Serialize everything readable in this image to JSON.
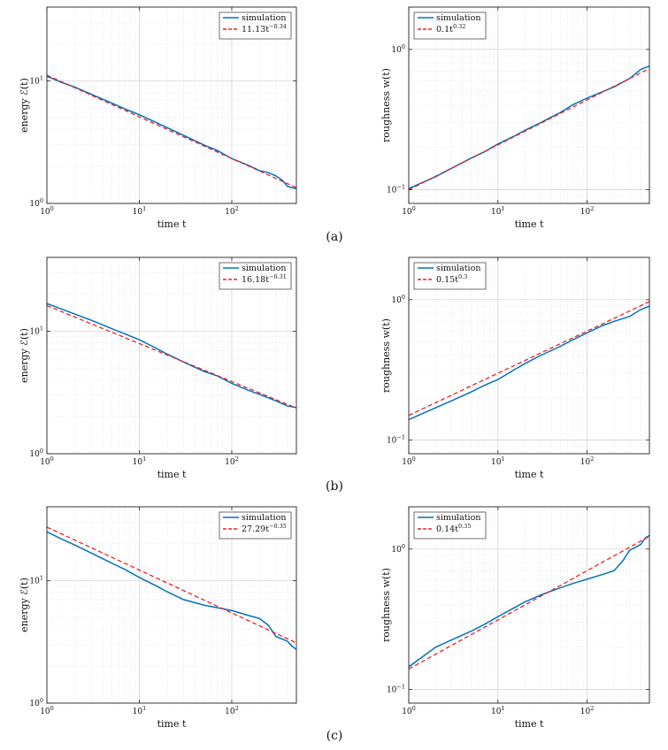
{
  "panel_labels": [
    "(a)",
    "(b)",
    "(c)"
  ],
  "chart_data": [
    {
      "id": "a-energy",
      "type": "line",
      "xscale": "log",
      "yscale": "log",
      "xlim": [
        1,
        500
      ],
      "ylim": [
        1,
        40
      ],
      "xlabel": "time t",
      "ylabel": "energy ℰ(t)",
      "xticks": [
        {
          "v": 1,
          "base": "10",
          "exp": "0"
        },
        {
          "v": 10,
          "base": "10",
          "exp": "1"
        },
        {
          "v": 100,
          "base": "10",
          "exp": "2"
        }
      ],
      "yticks": [
        {
          "v": 1,
          "base": "10",
          "exp": "0"
        },
        {
          "v": 10,
          "base": "10",
          "exp": "1"
        }
      ],
      "legend_position": "top-right",
      "grid": true,
      "series": [
        {
          "name": "simulation",
          "style": "solid",
          "color": "#0072BD",
          "points": [
            [
              1,
              10.9
            ],
            [
              1.5,
              9.6
            ],
            [
              2,
              8.9
            ],
            [
              3,
              7.8
            ],
            [
              5,
              6.6
            ],
            [
              7,
              5.9
            ],
            [
              10,
              5.3
            ],
            [
              15,
              4.6
            ],
            [
              20,
              4.15
            ],
            [
              30,
              3.6
            ],
            [
              50,
              3.0
            ],
            [
              70,
              2.7
            ],
            [
              100,
              2.32
            ],
            [
              150,
              2.05
            ],
            [
              200,
              1.85
            ],
            [
              250,
              1.78
            ],
            [
              300,
              1.68
            ],
            [
              350,
              1.55
            ],
            [
              400,
              1.38
            ],
            [
              450,
              1.34
            ],
            [
              500,
              1.32
            ]
          ]
        },
        {
          "name": "11.13t^{-0.34}",
          "style": "dashed",
          "color": "#E8222A",
          "fit": {
            "a": 11.13,
            "b": -0.34
          }
        }
      ],
      "legend": [
        {
          "text": "simulation"
        },
        {
          "coef": "11.13t",
          "exp": "−0.34"
        }
      ]
    },
    {
      "id": "a-roughness",
      "type": "line",
      "xscale": "log",
      "yscale": "log",
      "xlim": [
        1,
        500
      ],
      "ylim": [
        0.08,
        2
      ],
      "xlabel": "time t",
      "ylabel": "roughness w(t)",
      "xticks": [
        {
          "v": 1,
          "base": "10",
          "exp": "0"
        },
        {
          "v": 10,
          "base": "10",
          "exp": "1"
        },
        {
          "v": 100,
          "base": "10",
          "exp": "2"
        }
      ],
      "yticks": [
        {
          "v": 0.1,
          "base": "10",
          "exp": "−1"
        },
        {
          "v": 1,
          "base": "10",
          "exp": "0"
        }
      ],
      "legend_position": "top-left",
      "grid": true,
      "series": [
        {
          "name": "simulation",
          "style": "solid",
          "color": "#0072BD",
          "points": [
            [
              1,
              0.102
            ],
            [
              2,
              0.124
            ],
            [
              3,
              0.142
            ],
            [
              5,
              0.168
            ],
            [
              7,
              0.186
            ],
            [
              10,
              0.212
            ],
            [
              15,
              0.24
            ],
            [
              20,
              0.265
            ],
            [
              30,
              0.3
            ],
            [
              50,
              0.355
            ],
            [
              70,
              0.405
            ],
            [
              100,
              0.45
            ],
            [
              150,
              0.5
            ],
            [
              200,
              0.54
            ],
            [
              300,
              0.62
            ],
            [
              400,
              0.72
            ],
            [
              500,
              0.76
            ]
          ]
        },
        {
          "name": "0.1t^{0.32}",
          "style": "dashed",
          "color": "#E8222A",
          "fit": {
            "a": 0.1,
            "b": 0.32
          }
        }
      ],
      "legend": [
        {
          "text": "simulation"
        },
        {
          "coef": "0.1t",
          "exp": "0.32"
        }
      ]
    },
    {
      "id": "b-energy",
      "type": "line",
      "xscale": "log",
      "yscale": "log",
      "xlim": [
        1,
        500
      ],
      "ylim": [
        1,
        40
      ],
      "xlabel": "time t",
      "ylabel": "energy ℰ(t)",
      "xticks": [
        {
          "v": 1,
          "base": "10",
          "exp": "0"
        },
        {
          "v": 10,
          "base": "10",
          "exp": "1"
        },
        {
          "v": 100,
          "base": "10",
          "exp": "2"
        }
      ],
      "yticks": [
        {
          "v": 1,
          "base": "10",
          "exp": "0"
        },
        {
          "v": 10,
          "base": "10",
          "exp": "1"
        }
      ],
      "legend_position": "top-right",
      "grid": true,
      "series": [
        {
          "name": "simulation",
          "style": "solid",
          "color": "#0072BD",
          "points": [
            [
              1,
              16.8
            ],
            [
              1.5,
              15.0
            ],
            [
              2,
              13.8
            ],
            [
              3,
              12.3
            ],
            [
              5,
              10.5
            ],
            [
              7,
              9.5
            ],
            [
              10,
              8.5
            ],
            [
              15,
              7.3
            ],
            [
              20,
              6.5
            ],
            [
              30,
              5.6
            ],
            [
              50,
              4.7
            ],
            [
              70,
              4.3
            ],
            [
              100,
              3.75
            ],
            [
              150,
              3.3
            ],
            [
              200,
              3.05
            ],
            [
              300,
              2.7
            ],
            [
              400,
              2.45
            ],
            [
              500,
              2.38
            ]
          ]
        },
        {
          "name": "16.18t^{-0.31}",
          "style": "dashed",
          "color": "#E8222A",
          "fit": {
            "a": 16.18,
            "b": -0.31
          }
        }
      ],
      "legend": [
        {
          "text": "simulation"
        },
        {
          "coef": "16.18t",
          "exp": "−0.31"
        }
      ]
    },
    {
      "id": "b-roughness",
      "type": "line",
      "xscale": "log",
      "yscale": "log",
      "xlim": [
        1,
        500
      ],
      "ylim": [
        0.08,
        2
      ],
      "xlabel": "time t",
      "ylabel": "roughness w(t)",
      "xticks": [
        {
          "v": 1,
          "base": "10",
          "exp": "0"
        },
        {
          "v": 10,
          "base": "10",
          "exp": "1"
        },
        {
          "v": 100,
          "base": "10",
          "exp": "2"
        }
      ],
      "yticks": [
        {
          "v": 0.1,
          "base": "10",
          "exp": "−1"
        },
        {
          "v": 1,
          "base": "10",
          "exp": "0"
        }
      ],
      "legend_position": "top-left",
      "grid": true,
      "series": [
        {
          "name": "simulation",
          "style": "solid",
          "color": "#0072BD",
          "points": [
            [
              1,
              0.14
            ],
            [
              2,
              0.17
            ],
            [
              3,
              0.19
            ],
            [
              5,
              0.22
            ],
            [
              7,
              0.245
            ],
            [
              10,
              0.27
            ],
            [
              15,
              0.315
            ],
            [
              20,
              0.35
            ],
            [
              30,
              0.4
            ],
            [
              50,
              0.465
            ],
            [
              70,
              0.52
            ],
            [
              100,
              0.58
            ],
            [
              150,
              0.655
            ],
            [
              200,
              0.7
            ],
            [
              300,
              0.76
            ],
            [
              400,
              0.85
            ],
            [
              500,
              0.9
            ]
          ]
        },
        {
          "name": "0.15t^{0.3}",
          "style": "dashed",
          "color": "#E8222A",
          "fit": {
            "a": 0.15,
            "b": 0.3
          }
        }
      ],
      "legend": [
        {
          "text": "simulation"
        },
        {
          "coef": "0.15t",
          "exp": "0.3"
        }
      ]
    },
    {
      "id": "c-energy",
      "type": "line",
      "xscale": "log",
      "yscale": "log",
      "xlim": [
        1,
        500
      ],
      "ylim": [
        1,
        40
      ],
      "xlabel": "time t",
      "ylabel": "energy ℰ(t)",
      "xticks": [
        {
          "v": 1,
          "base": "10",
          "exp": "0"
        },
        {
          "v": 10,
          "base": "10",
          "exp": "1"
        },
        {
          "v": 100,
          "base": "10",
          "exp": "2"
        }
      ],
      "yticks": [
        {
          "v": 1,
          "base": "10",
          "exp": "0"
        },
        {
          "v": 10,
          "base": "10",
          "exp": "1"
        }
      ],
      "legend_position": "top-right",
      "grid": true,
      "series": [
        {
          "name": "simulation",
          "style": "solid",
          "color": "#0072BD",
          "points": [
            [
              1,
              25.0
            ],
            [
              1.5,
              21.5
            ],
            [
              2,
              19.5
            ],
            [
              3,
              16.8
            ],
            [
              5,
              13.9
            ],
            [
              7,
              12.3
            ],
            [
              10,
              10.6
            ],
            [
              15,
              9.1
            ],
            [
              20,
              8.1
            ],
            [
              30,
              7.0
            ],
            [
              50,
              6.3
            ],
            [
              70,
              6.0
            ],
            [
              100,
              5.7
            ],
            [
              150,
              5.2
            ],
            [
              200,
              4.9
            ],
            [
              250,
              4.3
            ],
            [
              300,
              3.5
            ],
            [
              400,
              3.2
            ],
            [
              450,
              2.9
            ],
            [
              500,
              2.75
            ]
          ]
        },
        {
          "name": "27.29t^{-0.35}",
          "style": "dashed",
          "color": "#E8222A",
          "fit": {
            "a": 27.29,
            "b": -0.35
          }
        }
      ],
      "legend": [
        {
          "text": "simulation"
        },
        {
          "coef": "27.29t",
          "exp": "−0.35"
        }
      ]
    },
    {
      "id": "c-roughness",
      "type": "line",
      "xscale": "log",
      "yscale": "log",
      "xlim": [
        1,
        500
      ],
      "ylim": [
        0.08,
        2
      ],
      "xlabel": "time t",
      "ylabel": "roughness w(t)",
      "xticks": [
        {
          "v": 1,
          "base": "10",
          "exp": "0"
        },
        {
          "v": 10,
          "base": "10",
          "exp": "1"
        },
        {
          "v": 100,
          "base": "10",
          "exp": "2"
        }
      ],
      "yticks": [
        {
          "v": 0.1,
          "base": "10",
          "exp": "−1"
        },
        {
          "v": 1,
          "base": "10",
          "exp": "0"
        }
      ],
      "legend_position": "top-left",
      "grid": true,
      "series": [
        {
          "name": "simulation",
          "style": "solid",
          "color": "#0072BD",
          "points": [
            [
              1,
              0.145
            ],
            [
              1.5,
              0.175
            ],
            [
              2,
              0.2
            ],
            [
              3,
              0.225
            ],
            [
              5,
              0.26
            ],
            [
              7,
              0.29
            ],
            [
              10,
              0.33
            ],
            [
              15,
              0.38
            ],
            [
              20,
              0.42
            ],
            [
              30,
              0.47
            ],
            [
              50,
              0.53
            ],
            [
              70,
              0.57
            ],
            [
              100,
              0.61
            ],
            [
              150,
              0.66
            ],
            [
              200,
              0.7
            ],
            [
              250,
              0.82
            ],
            [
              300,
              0.98
            ],
            [
              400,
              1.08
            ],
            [
              450,
              1.2
            ],
            [
              500,
              1.25
            ]
          ]
        },
        {
          "name": "0.14t^{0.35}",
          "style": "dashed",
          "color": "#E8222A",
          "fit": {
            "a": 0.14,
            "b": 0.35
          }
        }
      ],
      "legend": [
        {
          "text": "simulation"
        },
        {
          "coef": "0.14t",
          "exp": "0.35"
        }
      ]
    }
  ]
}
